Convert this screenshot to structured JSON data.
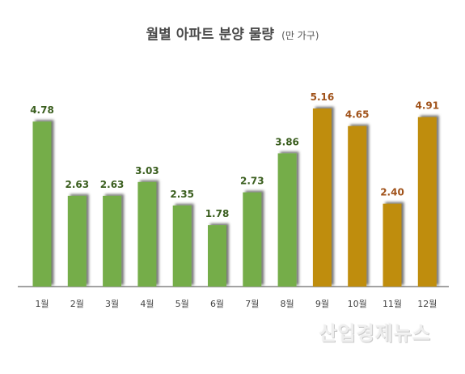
{
  "title": "월별 아파트 분양 물량",
  "unit": "(만 가구)",
  "watermark": "산업경제뉴스",
  "colors": {
    "green": "#74ad4a",
    "gold": "#bf8d08",
    "label_green": "#3a5e1e",
    "label_gold": "#a0521a"
  },
  "chart_data": {
    "type": "bar",
    "title": "월별 아파트 분양 물량",
    "unit": "(만 가구)",
    "categories": [
      "1월",
      "2월",
      "3월",
      "4월",
      "5월",
      "6월",
      "7월",
      "8월",
      "9월",
      "10월",
      "11월",
      "12월"
    ],
    "values": [
      4.78,
      2.63,
      2.63,
      3.03,
      2.35,
      1.78,
      2.73,
      3.86,
      5.16,
      4.65,
      2.4,
      4.91
    ],
    "value_labels": [
      "4.78",
      "2.63",
      "2.63",
      "3.03",
      "2.35",
      "1.78",
      "2.73",
      "3.86",
      "5.16",
      "4.65",
      "2.40",
      "4.91"
    ],
    "bar_colors": [
      "green",
      "green",
      "green",
      "green",
      "green",
      "green",
      "green",
      "green",
      "gold",
      "gold",
      "gold",
      "gold"
    ],
    "ylim": [
      0,
      5.16
    ],
    "grid": false,
    "legend": "none"
  }
}
